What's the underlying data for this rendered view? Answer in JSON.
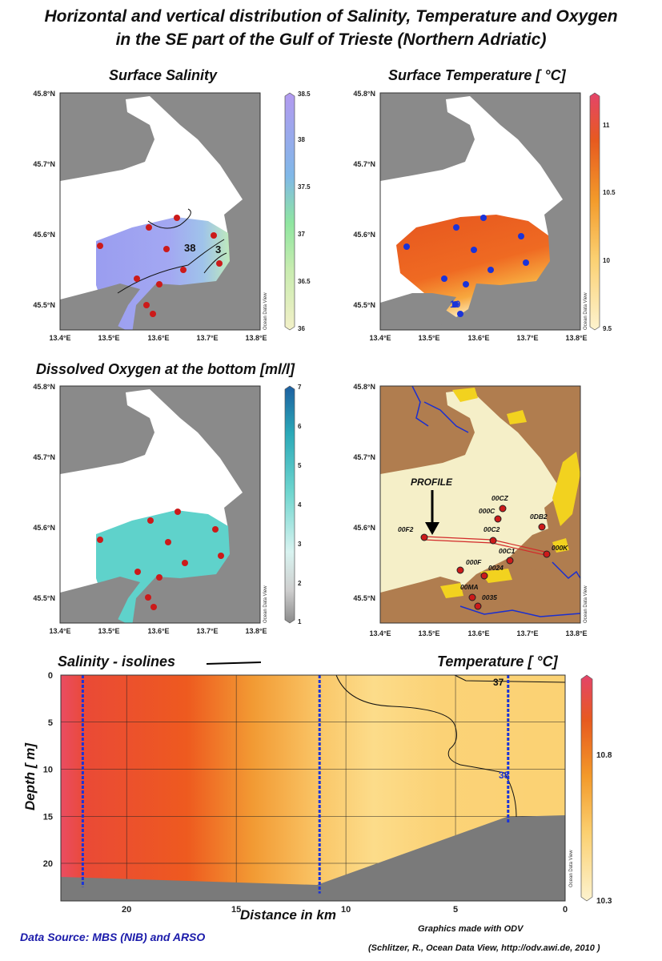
{
  "title_line1": "Horizontal and vertical distribution of Salinity, Temperature and Oxygen",
  "title_line2": "in the SE part of the Gulf of Trieste (Northern Adriatic)",
  "panel_titles": {
    "salinity": "Surface Salinity",
    "temperature": "Surface Temperature [ °C]",
    "oxygen": "Dissolved Oxygen at the bottom [ml/l]"
  },
  "map_axes": {
    "lat_ticks": [
      "45.8°N",
      "45.7°N",
      "45.6°N",
      "45.5°N"
    ],
    "lon_ticks": [
      "13.4°E",
      "13.5°E",
      "13.6°E",
      "13.7°E",
      "13.8°E"
    ]
  },
  "odv_watermark": "Ocean Data View",
  "colorbars": {
    "salinity": {
      "min": 36,
      "max": 38.5,
      "ticks": [
        "38.5",
        "38",
        "37.5",
        "37",
        "36.5",
        "36"
      ]
    },
    "temperature": {
      "min": 9.5,
      "max": 11.25,
      "ticks": [
        "11",
        "10.5",
        "10",
        "9.5"
      ]
    },
    "oxygen": {
      "min": 1,
      "max": 7,
      "ticks": [
        "7",
        "6",
        "5",
        "4",
        "3",
        "2",
        "1"
      ]
    },
    "section": {
      "min": 10.3,
      "max": 11.0,
      "ticks": [
        "10.8",
        "10.3"
      ]
    }
  },
  "contour_labels": {
    "salinity_map": [
      "38",
      "3"
    ],
    "temp_map": "10",
    "section": [
      "37",
      "38"
    ]
  },
  "station_map": {
    "profile_label": "PROFILE",
    "stations": [
      "00CZ",
      "000C",
      "0DB2",
      "00F2",
      "00C2",
      "000K",
      "00C1",
      "000F",
      "0024",
      "00MA",
      "0035"
    ]
  },
  "section_titles": {
    "left": "Salinity - isolines",
    "right": "Temperature [ °C]"
  },
  "chart_data": {
    "type": "heatmap",
    "title": "Temperature [ °C]",
    "xlabel": "Distance in km",
    "ylabel": "Depth [ m]",
    "x_ticks": [
      "20",
      "15",
      "10",
      "5",
      "0"
    ],
    "y_ticks": [
      "0",
      "5",
      "10",
      "15",
      "20"
    ],
    "xlim": [
      23,
      0
    ],
    "ylim": [
      0,
      24
    ],
    "colorbar": {
      "min": 10.3,
      "max": 11.0
    },
    "temperature_by_distance": {
      "distance_km": [
        23,
        22,
        20,
        18,
        16,
        14,
        12,
        10,
        8,
        5,
        2,
        0
      ],
      "temp_c": [
        10.95,
        10.9,
        10.85,
        10.75,
        10.6,
        10.45,
        10.4,
        10.38,
        10.42,
        10.45,
        10.46,
        10.45
      ]
    },
    "station_lines_km": [
      22,
      11.2,
      2.6
    ],
    "salinity_isolines": [
      "37",
      "38"
    ]
  },
  "footer": {
    "source": "Data Source: MBS (NIB) and ARSO",
    "made": "Graphics made with ODV",
    "credit": "(Schlitzer, R., Ocean Data View, http://odv.awi.de, 2010 )"
  },
  "colors": {
    "land": "#8a8a8a",
    "sea": "#ffffff",
    "station_red": "#cc1a1a",
    "station_blue": "#1a33d9",
    "relief_brown": "#b07d4f",
    "relief_pale": "#f5efc8",
    "relief_yellow": "#f2d21f",
    "river_blue": "#1a2fd0",
    "footer_blue": "#1a1aaa"
  }
}
